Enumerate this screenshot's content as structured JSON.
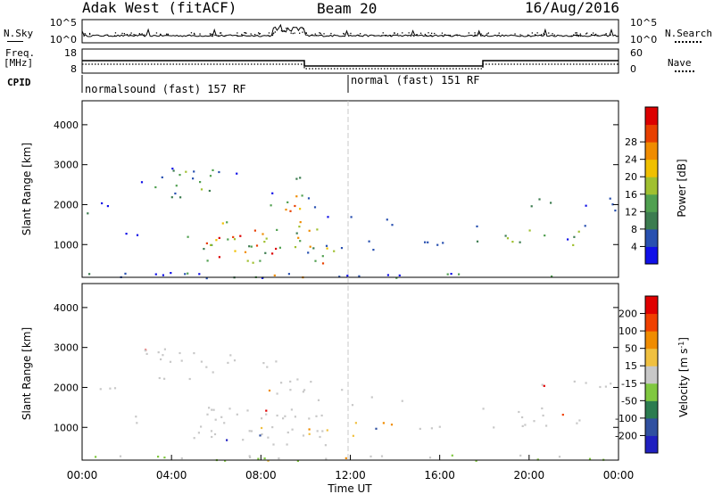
{
  "header": {
    "radar": "Adak West (fitACF)",
    "beam": "Beam 20",
    "date": "16/Aug/2016"
  },
  "left_labels": {
    "nsky": "N.Sky",
    "freq": "Freq.",
    "freq_unit": "[MHz]",
    "cpid": "CPID"
  },
  "right_labels": {
    "nsearch": "N.Search",
    "nave": "Nave"
  },
  "noise_panel": {
    "left_ticks": [
      "10^5",
      "10^0"
    ],
    "right_ticks": [
      "10^5",
      "10^0"
    ]
  },
  "freq_panel": {
    "left_ticks": [
      "18",
      "8"
    ],
    "right_ticks": [
      "60",
      "0"
    ]
  },
  "cpid_panel": {
    "segments": [
      {
        "label": "normalsound (fast) 157 RF",
        "start_hour": 0
      },
      {
        "label": "normal (fast) 151 RF",
        "start_hour": 12
      }
    ]
  },
  "chart_data": [
    {
      "type": "heatmap",
      "name": "power",
      "ylabel": "Slant Range [km]",
      "xlabel": "",
      "ylim": [
        180,
        4600
      ],
      "y_ticks": [
        "1000",
        "2000",
        "3000",
        "4000"
      ],
      "colorbar": {
        "label": "Power [dB]",
        "ticks": [
          "4",
          "8",
          "12",
          "16",
          "20",
          "24",
          "28"
        ],
        "colors": [
          "#1010e8",
          "#2850b0",
          "#3c7c50",
          "#50a050",
          "#a0c030",
          "#f0c000",
          "#f08c00",
          "#e84000",
          "#dc0000"
        ]
      }
    },
    {
      "type": "heatmap",
      "name": "velocity",
      "ylabel": "Slant Range [km]",
      "xlabel": "Time UT",
      "ylim": [
        180,
        4600
      ],
      "y_ticks": [
        "1000",
        "2000",
        "3000",
        "4000"
      ],
      "x_ticks": [
        "00:00",
        "04:00",
        "08:00",
        "12:00",
        "16:00",
        "20:00",
        "00:00"
      ],
      "colorbar": {
        "label": "Velocity [m s",
        "label_sup": "-1",
        "label_end": "]",
        "ticks": [
          "200",
          "100",
          "50",
          "15",
          "-15",
          "-50",
          "-100",
          "-200"
        ],
        "colors": [
          "#2020c0",
          "#3050a0",
          "#2c7c50",
          "#80c840",
          "#c8c8c8",
          "#f0c040",
          "#f08c00",
          "#f04000",
          "#e00000"
        ]
      }
    }
  ]
}
